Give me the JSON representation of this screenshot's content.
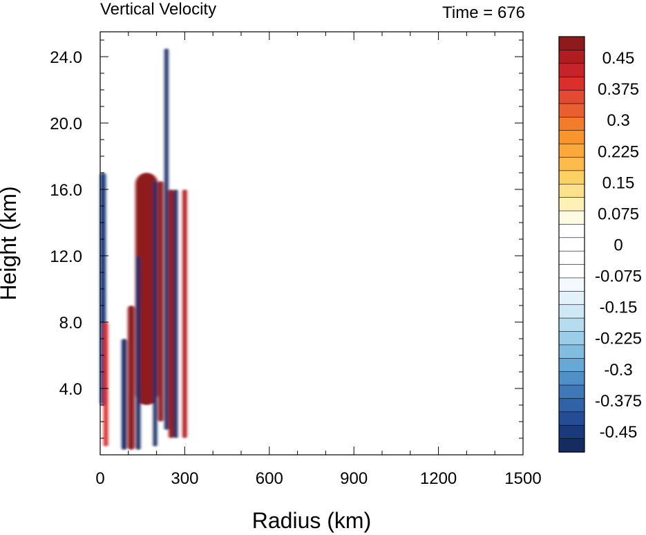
{
  "chart_data": {
    "type": "heatmap",
    "title": "Vertical Velocity",
    "subtitle": "Time = 676",
    "xlabel": "Radius (km)",
    "ylabel": "Height (km)",
    "xlim": [
      0,
      1500
    ],
    "ylim": [
      0,
      25.5
    ],
    "xticks": [
      0,
      300,
      600,
      900,
      1200,
      1500
    ],
    "xtick_labels": [
      "0",
      "300",
      "600",
      "900",
      "1200",
      "1500"
    ],
    "yticks": [
      4,
      8,
      12,
      16,
      20,
      24
    ],
    "ytick_labels": [
      "4.0",
      "8.0",
      "12.0",
      "16.0",
      "20.0",
      "24.0"
    ],
    "colorbar": {
      "min": -0.5,
      "max": 0.5,
      "step": 0.025,
      "tick_values": [
        0.45,
        0.375,
        0.3,
        0.225,
        0.15,
        0.075,
        0,
        -0.075,
        -0.15,
        -0.225,
        -0.3,
        -0.375,
        -0.45
      ],
      "tick_labels": [
        "0.45",
        "0.375",
        "0.3",
        "0.225",
        "0.15",
        "0.075",
        "0",
        "-0.075",
        "-0.15",
        "-0.225",
        "-0.3",
        "-0.375",
        "-0.45"
      ],
      "colors_top_to_bottom": [
        "#8e1a1c",
        "#b01d21",
        "#c8232a",
        "#db2f2c",
        "#e24a31",
        "#ea5f2f",
        "#f27c2b",
        "#f8952d",
        "#fca83a",
        "#fdbb4b",
        "#fdd062",
        "#fee18c",
        "#fff0b8",
        "#fffbe2",
        "#ffffff",
        "#ffffff",
        "#ffffff",
        "#ffffff",
        "#f3f9fd",
        "#e2f1fa",
        "#cfe8f5",
        "#b6dcef",
        "#9ccde8",
        "#82bde0",
        "#68a8d6",
        "#5090c8",
        "#3f78b9",
        "#3062a8",
        "#244d95",
        "#1b3a7b",
        "#152c62"
      ]
    },
    "features": [
      {
        "kind": "updraft",
        "r_center": 165,
        "r_half_width": 40,
        "z_range": [
          3,
          17
        ],
        "value": 0.5
      },
      {
        "kind": "updraft",
        "r_center": 110,
        "r_half_width": 12,
        "z_range": [
          0.3,
          9
        ],
        "value": 0.5
      },
      {
        "kind": "downdraft",
        "r_center": 85,
        "r_half_width": 9,
        "z_range": [
          0.3,
          7
        ],
        "value": -0.5
      },
      {
        "kind": "downdraft",
        "r_center": 135,
        "r_half_width": 8,
        "z_range": [
          0.3,
          12
        ],
        "value": -0.5
      },
      {
        "kind": "downdraft",
        "r_center": 195,
        "r_half_width": 7,
        "z_range": [
          0.5,
          16.5
        ],
        "value": -0.5
      },
      {
        "kind": "updraft",
        "r_center": 215,
        "r_half_width": 9,
        "z_range": [
          2,
          16.5
        ],
        "value": 0.5
      },
      {
        "kind": "downdraft",
        "r_center": 235,
        "r_half_width": 7,
        "z_range": [
          1.5,
          24.5
        ],
        "value": -0.5
      },
      {
        "kind": "updraft",
        "r_center": 252,
        "r_half_width": 9,
        "z_range": [
          1,
          16
        ],
        "value": 0.5
      },
      {
        "kind": "downdraft",
        "r_center": 268,
        "r_half_width": 7,
        "z_range": [
          1,
          16
        ],
        "value": -0.5
      },
      {
        "kind": "updraft",
        "r_center": 300,
        "r_half_width": 8,
        "z_range": [
          1,
          16
        ],
        "value": 0.45
      },
      {
        "kind": "downdraft",
        "r_center": 10,
        "r_half_width": 10,
        "z_range": [
          3,
          17
        ],
        "value": -0.45
      },
      {
        "kind": "updraft",
        "r_center": 20,
        "r_half_width": 8,
        "z_range": [
          0.5,
          8
        ],
        "value": 0.4
      }
    ]
  }
}
